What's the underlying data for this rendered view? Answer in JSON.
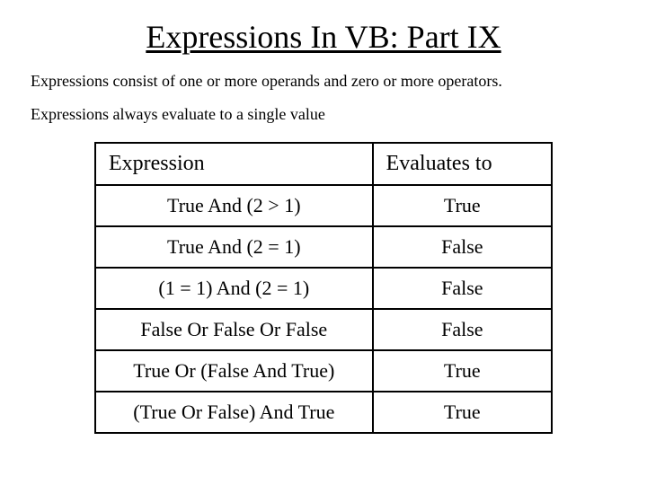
{
  "title": "Expressions In VB:  Part IX",
  "description1": "Expressions consist of one or more operands and zero or more operators.",
  "description2": "Expressions always evaluate to a single value",
  "table": {
    "columns": [
      "Expression",
      "Evaluates to"
    ],
    "rows": [
      [
        "True And (2 > 1)",
        "True"
      ],
      [
        "True And (2 = 1)",
        "False"
      ],
      [
        "(1 = 1) And (2 = 1)",
        "False"
      ],
      [
        "False Or False Or False",
        "False"
      ],
      [
        "True Or (False And True)",
        "True"
      ],
      [
        "(True Or False) And True",
        "True"
      ]
    ],
    "border_color": "#000000",
    "background_color": "#ffffff",
    "title_fontsize": 36,
    "desc_fontsize": 18,
    "header_fontsize": 24,
    "cell_fontsize": 22,
    "col_expr_width": 310,
    "col_eval_width": 200
  }
}
